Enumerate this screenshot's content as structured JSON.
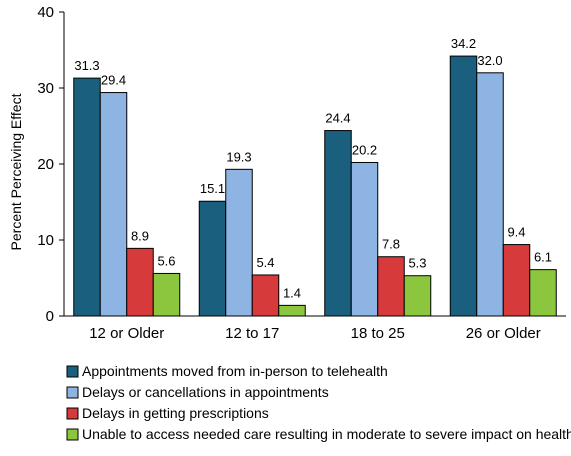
{
  "chart_data": {
    "type": "bar",
    "title": "",
    "xlabel": "",
    "ylabel": "Percent Perceiving Effect",
    "ylim": [
      0,
      40
    ],
    "yticks": [
      0,
      10,
      20,
      30,
      40
    ],
    "grid": false,
    "legend_position": "bottom",
    "categories": [
      "12 or Older",
      "12 to 17",
      "18 to 25",
      "26 or Older"
    ],
    "series": [
      {
        "name": "Appointments moved from in-person to telehealth",
        "color": "#1b5f7e",
        "values": [
          31.3,
          15.1,
          24.4,
          34.2
        ]
      },
      {
        "name": "Delays or cancellations in appointments",
        "color": "#8eb4e3",
        "values": [
          29.4,
          19.3,
          20.2,
          32.0
        ]
      },
      {
        "name": "Delays in getting prescriptions",
        "color": "#d63a3a",
        "values": [
          8.9,
          5.4,
          7.8,
          9.4
        ]
      },
      {
        "name": "Unable to access needed care resulting in moderate to severe impact on health",
        "color": "#8cc63f",
        "values": [
          5.6,
          1.4,
          5.3,
          6.1
        ]
      }
    ]
  }
}
